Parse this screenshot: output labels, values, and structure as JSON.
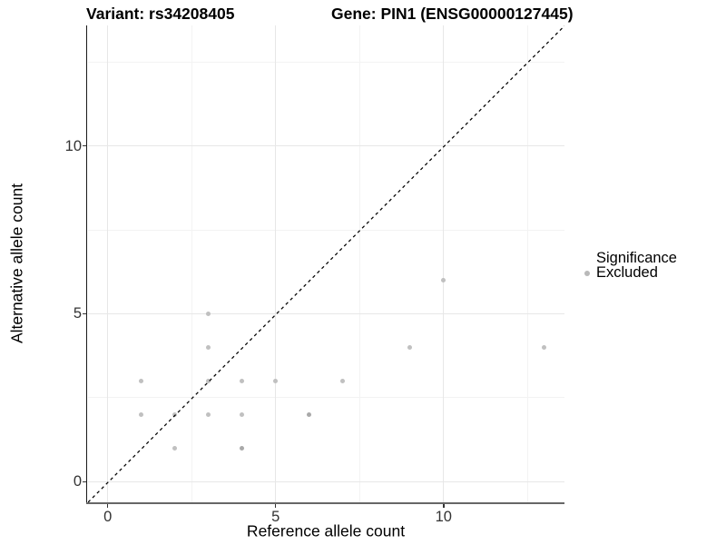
{
  "chart_data": {
    "type": "scatter",
    "title_left": "Variant: rs34208405",
    "title_right": "Gene: PIN1 (ENSG00000127445)",
    "xlabel": "Reference allele count",
    "ylabel": "Alternative allele count",
    "xlim": [
      -0.6,
      13.6
    ],
    "ylim": [
      -0.6,
      13.6
    ],
    "x_ticks": [
      0,
      5,
      10
    ],
    "y_ticks": [
      0,
      5,
      10
    ],
    "x_minor_gridlines": [
      2.5,
      7.5,
      12.5
    ],
    "y_minor_gridlines": [
      2.5,
      7.5,
      12.5
    ],
    "grid": true,
    "identity_line": {
      "style": "dashed",
      "slope": 1,
      "intercept": 0,
      "color": "#000000"
    },
    "legend": {
      "title": "Significance",
      "position": "right",
      "items": [
        {
          "label": "Excluded",
          "color": "#b9b9b9"
        }
      ]
    },
    "colors": {
      "point": "#c0c0c0",
      "point_overlap": "#a9a9a9",
      "grid_major": "#e7e7e7",
      "grid_minor": "#f3f3f3",
      "axis_line_x": "#666666",
      "axis_line_y": "#1a1a1a",
      "tick": "#333333"
    },
    "series": [
      {
        "name": "Excluded",
        "points": [
          {
            "x": 1,
            "y": 2,
            "n": 1
          },
          {
            "x": 1,
            "y": 3,
            "n": 1
          },
          {
            "x": 2,
            "y": 1,
            "n": 1
          },
          {
            "x": 2,
            "y": 2,
            "n": 1
          },
          {
            "x": 3,
            "y": 2,
            "n": 1
          },
          {
            "x": 3,
            "y": 3,
            "n": 1
          },
          {
            "x": 3,
            "y": 4,
            "n": 1
          },
          {
            "x": 3,
            "y": 5,
            "n": 1
          },
          {
            "x": 4,
            "y": 1,
            "n": 2
          },
          {
            "x": 4,
            "y": 2,
            "n": 1
          },
          {
            "x": 4,
            "y": 3,
            "n": 1
          },
          {
            "x": 5,
            "y": 3,
            "n": 1
          },
          {
            "x": 6,
            "y": 2,
            "n": 2
          },
          {
            "x": 7,
            "y": 3,
            "n": 1
          },
          {
            "x": 9,
            "y": 4,
            "n": 1
          },
          {
            "x": 10,
            "y": 6,
            "n": 1
          },
          {
            "x": 13,
            "y": 4,
            "n": 1
          }
        ]
      }
    ]
  }
}
